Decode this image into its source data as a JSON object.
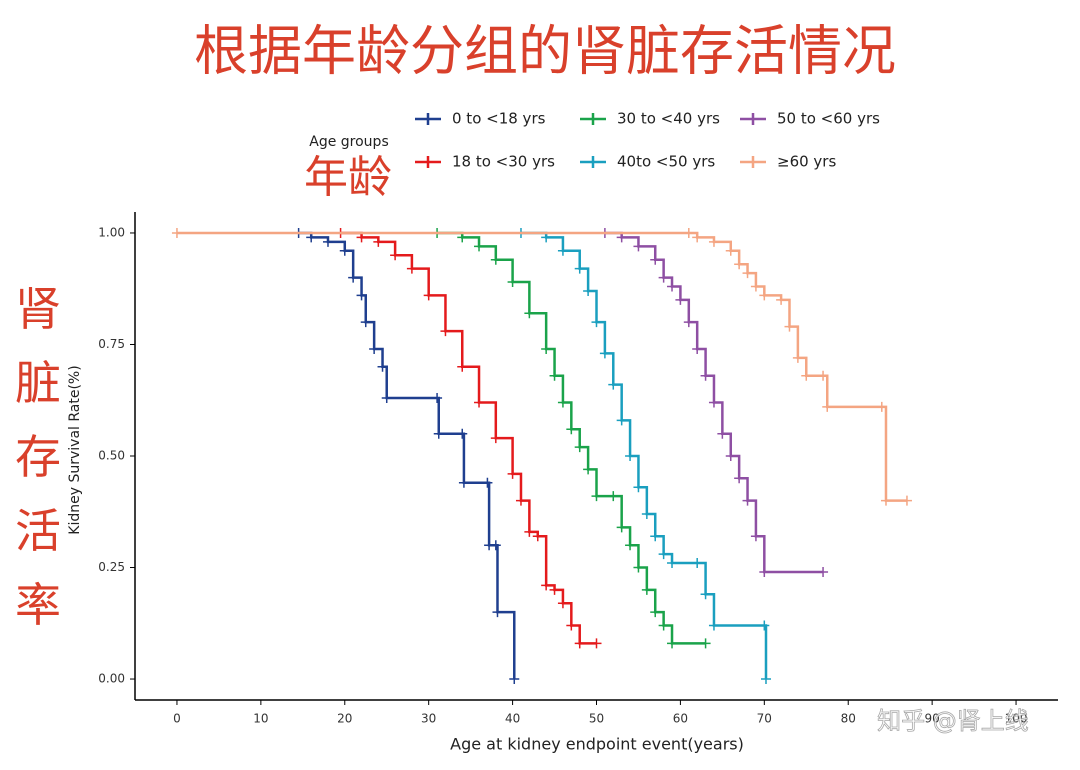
{
  "chart_data": {
    "type": "step",
    "title": "根据年龄分组的肾脏存活情况",
    "annotations": [
      "年龄",
      "肾脏存活率",
      "知乎 @肾上线"
    ],
    "legend_title": "Age groups",
    "x_label": "Age at kidney endpoint event(years)",
    "y_label": "Kidney Survival Rate(%)",
    "xlim": [
      -5,
      105
    ],
    "ylim": [
      -0.047,
      1.047
    ],
    "xticks": [
      0,
      10,
      20,
      30,
      40,
      50,
      60,
      70,
      80,
      90,
      100
    ],
    "yticks": [
      {
        "value": 0,
        "label": "0.00"
      },
      {
        "value": 0.25,
        "label": "0.25"
      },
      {
        "value": 0.5,
        "label": "0.50"
      },
      {
        "value": 0.75,
        "label": "0.75"
      },
      {
        "value": 1,
        "label": "1.00"
      }
    ],
    "series": [
      {
        "name": "0 to <18 yrs",
        "color": "#1f3f8f",
        "x": [
          14.5,
          16,
          18,
          20,
          21,
          22,
          22.5,
          23.5,
          24.5,
          25,
          31,
          31.2,
          34,
          34.2,
          37,
          37.2,
          38,
          38.2,
          40.2
        ],
        "values": [
          1.0,
          0.99,
          0.98,
          0.96,
          0.9,
          0.86,
          0.8,
          0.74,
          0.7,
          0.63,
          0.63,
          0.55,
          0.55,
          0.44,
          0.44,
          0.3,
          0.3,
          0.15,
          0
        ]
      },
      {
        "name": "18 to <30 yrs",
        "color": "#e41a1c",
        "x": [
          19.5,
          22,
          24,
          26,
          28,
          30,
          32,
          34,
          36,
          38,
          40,
          41,
          42,
          43,
          44,
          45,
          46,
          47,
          48,
          50
        ],
        "values": [
          1.0,
          0.99,
          0.98,
          0.95,
          0.92,
          0.86,
          0.78,
          0.7,
          0.62,
          0.54,
          0.46,
          0.4,
          0.33,
          0.32,
          0.21,
          0.2,
          0.17,
          0.12,
          0.08,
          0.08
        ]
      },
      {
        "name": "30 to <40 yrs",
        "color": "#1aa34a",
        "x": [
          31,
          34,
          36,
          38,
          40,
          42,
          44,
          45,
          46,
          47,
          48,
          49,
          50,
          52,
          53,
          54,
          55,
          56,
          57,
          58,
          59,
          63
        ],
        "values": [
          1.0,
          0.99,
          0.97,
          0.94,
          0.89,
          0.82,
          0.74,
          0.68,
          0.62,
          0.56,
          0.52,
          0.47,
          0.41,
          0.41,
          0.34,
          0.3,
          0.25,
          0.2,
          0.15,
          0.12,
          0.08,
          0.08
        ]
      },
      {
        "name": "40to <50 yrs",
        "color": "#1a9fbf",
        "x": [
          41,
          44,
          46,
          48,
          49,
          50,
          51,
          52,
          53,
          54,
          55,
          56,
          57,
          58,
          59,
          62,
          63,
          64,
          70,
          70.2
        ],
        "values": [
          1.0,
          0.99,
          0.96,
          0.92,
          0.87,
          0.8,
          0.73,
          0.66,
          0.58,
          0.5,
          0.43,
          0.37,
          0.32,
          0.28,
          0.26,
          0.26,
          0.19,
          0.12,
          0.12,
          0
        ]
      },
      {
        "name": "50 to <60 yrs",
        "color": "#8e4fa3",
        "x": [
          51,
          53,
          55,
          57,
          58,
          59,
          60,
          61,
          62,
          63,
          64,
          65,
          66,
          67,
          68,
          69,
          70,
          77
        ],
        "values": [
          1.0,
          0.99,
          0.97,
          0.94,
          0.9,
          0.88,
          0.85,
          0.8,
          0.74,
          0.68,
          0.62,
          0.55,
          0.5,
          0.45,
          0.4,
          0.32,
          0.24,
          0.24
        ]
      },
      {
        "name": "≥60 yrs",
        "color": "#f4a582",
        "x": [
          0,
          61,
          62,
          64,
          66,
          67,
          68,
          69,
          70,
          72,
          73,
          74,
          75,
          77,
          77.5,
          84,
          84.5,
          87
        ],
        "values": [
          1.0,
          1.0,
          0.99,
          0.98,
          0.96,
          0.93,
          0.91,
          0.88,
          0.86,
          0.85,
          0.79,
          0.72,
          0.68,
          0.68,
          0.61,
          0.61,
          0.4,
          0.4
        ]
      }
    ]
  }
}
